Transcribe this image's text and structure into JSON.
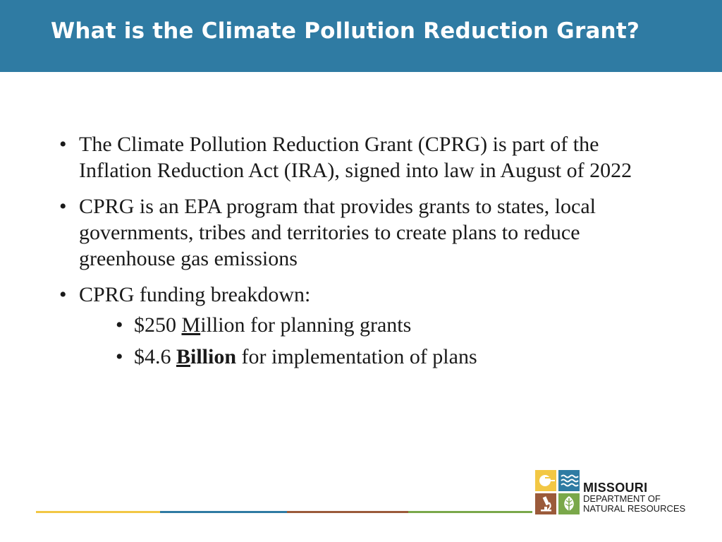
{
  "header": {
    "title": "What is the Climate Pollution Reduction Grant?"
  },
  "bullets": [
    {
      "text": "The Climate Pollution Reduction Grant (CPRG) is part of the Inflation Reduction Act (IRA), signed into law in August of 2022"
    },
    {
      "text": "CPRG is an EPA program that provides grants to states, local governments, tribes and territories to create plans to reduce greenhouse gas emissions"
    },
    {
      "text": "CPRG funding breakdown:",
      "sub": [
        {
          "prefix": "$250 ",
          "emph": "M",
          "rest": "illion for planning grants"
        },
        {
          "prefix": "$4.6 ",
          "emph": "B",
          "emph2": "illion",
          "rest": " for implementation of plans"
        }
      ]
    }
  ],
  "bullet_char": "•",
  "logo": {
    "line1": "MISSOURI",
    "line2": "DEPARTMENT OF",
    "line3": "NATURAL RESOURCES"
  },
  "colors": {
    "header": "#2f7ba3",
    "yellow": "#f2c744",
    "blue": "#2f7ba3",
    "brown": "#9b5a3a",
    "green": "#7aa84a"
  }
}
